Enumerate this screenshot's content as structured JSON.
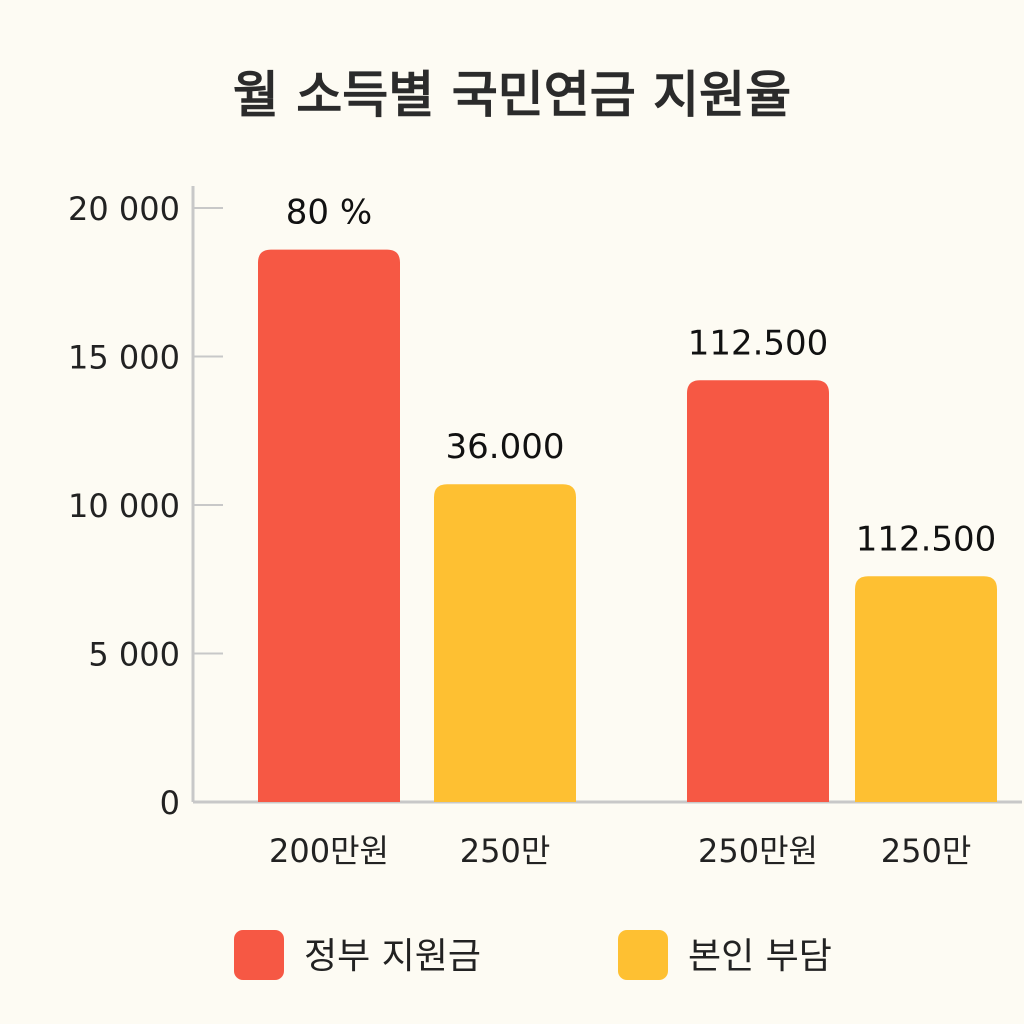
{
  "chart_data": {
    "type": "bar",
    "title": "월 소득별 국민연금 지원율",
    "xlabel": "",
    "ylabel": "",
    "ylim": [
      0,
      20000
    ],
    "yticks": [
      0,
      5000,
      10000,
      15000,
      20000
    ],
    "ytick_labels": [
      "0",
      "5 000",
      "10 000",
      "15 000",
      "20 000"
    ],
    "groups": [
      {
        "bars": [
          {
            "category": "200만원",
            "series": "정부 지원금",
            "value": 18600,
            "label": "80 %"
          },
          {
            "category": "250만",
            "series": "본인 부담",
            "value": 10700,
            "label": "36.000"
          }
        ]
      },
      {
        "bars": [
          {
            "category": "250만원",
            "series": "정부 지원금",
            "value": 14200,
            "label": "112.500"
          },
          {
            "category": "250만",
            "series": "본인 부담",
            "value": 7600,
            "label": "112.500"
          }
        ]
      }
    ],
    "legend": {
      "placement": "bottom",
      "items": [
        {
          "name": "정부 지원금",
          "color": "#f65844"
        },
        {
          "name": "본인 부담",
          "color": "#fec032"
        }
      ]
    },
    "grid": false,
    "colors": {
      "axis": "#c8c8c8",
      "background": "#fdfbf3"
    }
  }
}
